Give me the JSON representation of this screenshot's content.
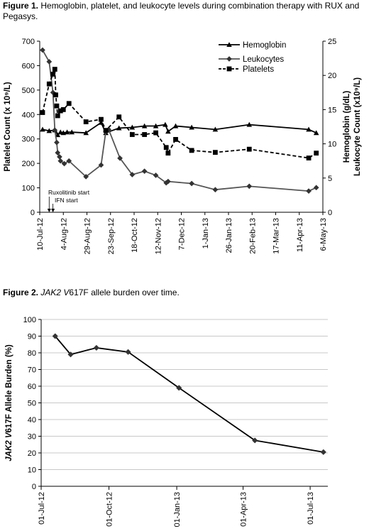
{
  "figure1": {
    "caption_label": "Figure 1.",
    "caption_text": " Hemoglobin, platelet, and leukocyte levels during combination therapy with RUX and Pegasys."
  },
  "figure2": {
    "caption_label": "Figure 2.",
    "caption_gene": "JAK2 V",
    "caption_text": "617F allele burden over time."
  },
  "chart_data": [
    {
      "type": "line",
      "ylabel_left": "Platelet Count (x 10⁹/L)",
      "ylabel_right_line1": "Hemoglobin (g/dL)",
      "ylabel_right_line2": "Leukocyte Count (x10⁹/L)",
      "ylim_left": [
        0,
        700
      ],
      "yticks_left": [
        "0",
        "100",
        "200",
        "300",
        "400",
        "500",
        "600",
        "700"
      ],
      "ylim_right": [
        0,
        25
      ],
      "yticks_right": [
        "0",
        "5",
        "10",
        "15",
        "20",
        "25"
      ],
      "x_tick_labels": [
        "10-Jul-12",
        "4-Aug-12",
        "29-Aug-12",
        "23-Sep-12",
        "18-Oct-12",
        "12-Nov-12",
        "7-Dec-12",
        "1-Jan-13",
        "26-Jan-13",
        "20-Feb-13",
        "17-Mar-13",
        "11-Apr-13",
        "6-May-13"
      ],
      "x_range": [
        "2012-07-10",
        "2013-05-06"
      ],
      "legend_position": "top-right",
      "annotations": {
        "ruxolitinib_label": "Ruxolitinib start",
        "ifn_label": "IFN start",
        "ruxolitinib_date": "2012-07-20",
        "ifn_date": "2012-07-24"
      },
      "series": [
        {
          "name": "Hemoglobin",
          "axis": "right",
          "marker": "triangle",
          "dash": "solid",
          "points": [
            [
              "2012-07-13",
              12.1
            ],
            [
              "2012-07-20",
              11.9
            ],
            [
              "2012-07-26",
              12.0
            ],
            [
              "2012-07-29",
              11.3
            ],
            [
              "2012-08-01",
              11.7
            ],
            [
              "2012-08-04",
              11.6
            ],
            [
              "2012-08-08",
              11.7
            ],
            [
              "2012-08-13",
              11.7
            ],
            [
              "2012-08-28",
              11.6
            ],
            [
              "2012-09-13",
              13.1
            ],
            [
              "2012-09-18",
              11.6
            ],
            [
              "2012-10-02",
              12.3
            ],
            [
              "2012-10-16",
              12.4
            ],
            [
              "2012-10-29",
              12.6
            ],
            [
              "2012-11-10",
              12.6
            ],
            [
              "2012-11-20",
              12.8
            ],
            [
              "2012-11-23",
              11.8
            ],
            [
              "2012-12-01",
              12.6
            ],
            [
              "2012-12-18",
              12.4
            ],
            [
              "2013-01-12",
              12.1
            ],
            [
              "2013-02-17",
              12.8
            ],
            [
              "2013-04-21",
              12.1
            ],
            [
              "2013-04-29",
              11.6
            ]
          ]
        },
        {
          "name": "Leukocytes",
          "axis": "right",
          "marker": "diamond",
          "dash": "solid",
          "points": [
            [
              "2012-07-13",
              23.7
            ],
            [
              "2012-07-20",
              22.0
            ],
            [
              "2012-07-24",
              17.5
            ],
            [
              "2012-07-26",
              12.0
            ],
            [
              "2012-07-28",
              10.2
            ],
            [
              "2012-07-29",
              8.7
            ],
            [
              "2012-07-31",
              8.1
            ],
            [
              "2012-08-01",
              7.5
            ],
            [
              "2012-08-05",
              7.1
            ],
            [
              "2012-08-10",
              7.5
            ],
            [
              "2012-08-28",
              5.2
            ],
            [
              "2012-09-13",
              6.9
            ],
            [
              "2012-09-18",
              11.8
            ],
            [
              "2012-09-21",
              12.1
            ],
            [
              "2012-10-03",
              7.9
            ],
            [
              "2012-10-16",
              5.5
            ],
            [
              "2012-10-29",
              6.0
            ],
            [
              "2012-11-10",
              5.4
            ],
            [
              "2012-11-21",
              4.3
            ],
            [
              "2012-11-23",
              4.5
            ],
            [
              "2012-12-18",
              4.2
            ],
            [
              "2013-01-12",
              3.3
            ],
            [
              "2013-02-17",
              3.8
            ],
            [
              "2013-04-21",
              3.1
            ],
            [
              "2013-04-29",
              3.6
            ]
          ]
        },
        {
          "name": "Platelets",
          "axis": "left",
          "marker": "square",
          "dash": "dashed",
          "points": [
            [
              "2012-07-13",
              408
            ],
            [
              "2012-07-20",
              525
            ],
            [
              "2012-07-24",
              565
            ],
            [
              "2012-07-26",
              585
            ],
            [
              "2012-07-27",
              480
            ],
            [
              "2012-07-28",
              435
            ],
            [
              "2012-07-29",
              395
            ],
            [
              "2012-08-01",
              415
            ],
            [
              "2012-08-04",
              420
            ],
            [
              "2012-08-10",
              445
            ],
            [
              "2012-08-28",
              370
            ],
            [
              "2012-09-13",
              380
            ],
            [
              "2012-09-18",
              335
            ],
            [
              "2012-10-02",
              390
            ],
            [
              "2012-10-16",
              318
            ],
            [
              "2012-10-29",
              318
            ],
            [
              "2012-11-10",
              325
            ],
            [
              "2012-11-21",
              265
            ],
            [
              "2012-11-23",
              242
            ],
            [
              "2012-12-01",
              298
            ],
            [
              "2012-12-18",
              253
            ],
            [
              "2013-01-12",
              245
            ],
            [
              "2013-02-17",
              258
            ],
            [
              "2013-04-21",
              222
            ],
            [
              "2013-04-29",
              242
            ]
          ]
        }
      ]
    },
    {
      "type": "line",
      "ylabel_prefix": "JAK2 V",
      "ylabel_suffix": "617F Allele Burden (%)",
      "ylim": [
        0,
        100
      ],
      "yticks": [
        "0",
        "10",
        "20",
        "30",
        "40",
        "50",
        "60",
        "70",
        "80",
        "90",
        "100"
      ],
      "grid": "horizontal",
      "x_tick_labels": [
        "01-Jul-12",
        "01-Oct-12",
        "01-Jan-13",
        "01-Apr-13",
        "01-Jul-13"
      ],
      "x_range": [
        "2012-07-01",
        "2013-07-25"
      ],
      "series": [
        {
          "marker": "diamond",
          "points": [
            [
              "2012-07-20",
              90
            ],
            [
              "2012-08-10",
              79
            ],
            [
              "2012-09-14",
              83
            ],
            [
              "2012-10-27",
              80.5
            ],
            [
              "2013-01-04",
              59
            ],
            [
              "2013-04-17",
              27.5
            ],
            [
              "2013-07-19",
              20.5
            ]
          ]
        }
      ]
    }
  ]
}
